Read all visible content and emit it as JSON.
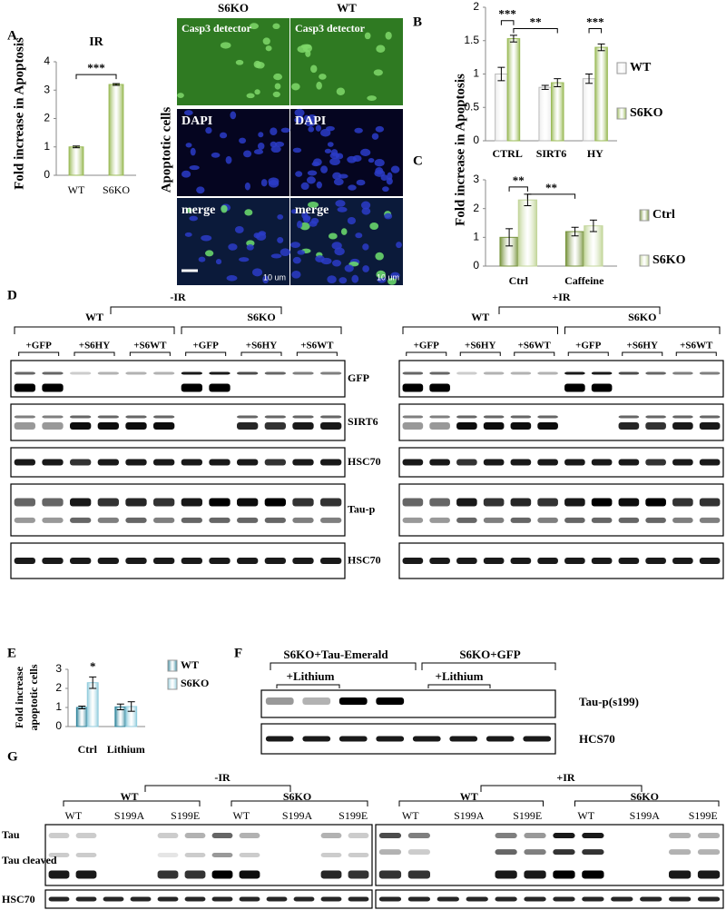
{
  "panel_labels": [
    "A",
    "B",
    "C",
    "D",
    "E",
    "F",
    "G"
  ],
  "chart_data": [
    {
      "type": "bar",
      "title": "IR",
      "y_label": "Fold increase in Apoptosis",
      "categories": [
        "WT",
        "S6KO"
      ],
      "values": [
        1,
        3.2
      ],
      "errors": [
        0.03,
        0.03
      ],
      "color": "#9bbb59",
      "ylim": [
        0,
        4
      ],
      "yticks": [
        0,
        1,
        2,
        3,
        4
      ],
      "annotations": [
        "***"
      ]
    },
    {
      "type": "grouped-bar",
      "y_label": "Fold increase  in Apoptosis",
      "categories": [
        "CTRL",
        "SIRT6",
        "HY"
      ],
      "ylim": [
        0,
        2
      ],
      "yticks": [
        0,
        0.5,
        1,
        1.5,
        2
      ],
      "series": [
        {
          "name": "WT",
          "color": "#ececec",
          "values": [
            1,
            0.8,
            0.93
          ],
          "errors": [
            0.1,
            0.03,
            0.07
          ]
        },
        {
          "name": "S6KO",
          "color": "#9bbb59",
          "values": [
            1.53,
            0.87,
            1.4
          ],
          "errors": [
            0.05,
            0.06,
            0.05
          ]
        }
      ],
      "annotations": [
        "***",
        "**",
        "***"
      ]
    },
    {
      "type": "grouped-bar",
      "categories": [
        "Ctrl",
        "Caffeine"
      ],
      "ylim": [
        0,
        3
      ],
      "yticks": [
        0,
        1,
        2,
        3
      ],
      "series": [
        {
          "name": "Ctrl",
          "color": "#77933c",
          "values": [
            1,
            1.2
          ],
          "errors": [
            0.3,
            0.15
          ]
        },
        {
          "name": "S6KO",
          "color": "#c3d69b",
          "values": [
            2.3,
            1.4
          ],
          "errors": [
            0.2,
            0.2
          ]
        }
      ],
      "annotations": [
        "**",
        "**"
      ]
    },
    {
      "type": "grouped-bar",
      "y_label": [
        "Fold increase",
        "apoptotic cells"
      ],
      "categories": [
        "Ctrl",
        "Lithium"
      ],
      "ylim": [
        0,
        3
      ],
      "yticks": [
        0,
        1,
        2,
        3
      ],
      "series": [
        {
          "name": "WT",
          "color": "#31859c",
          "values": [
            1,
            1.03
          ],
          "errors": [
            0.07,
            0.15
          ]
        },
        {
          "name": "S6KO",
          "color": "#93cddd",
          "values": [
            2.3,
            1.05
          ],
          "errors": [
            0.3,
            0.25
          ]
        }
      ],
      "annotations": [
        "*"
      ]
    }
  ],
  "micrograph": {
    "side_label": "Apoptotic cells",
    "columns": [
      "S6KO",
      "WT"
    ],
    "rows": [
      "Casp3 detector",
      "DAPI",
      "merge"
    ],
    "scale": "10 um"
  },
  "blot_d": {
    "conditions": [
      "-IR",
      "+IR"
    ],
    "genotypes": [
      "WT",
      "S6KO"
    ],
    "treatments": [
      "+GFP",
      "+S6HY",
      "+S6WT"
    ],
    "rows": [
      "GFP",
      "SIRT6",
      "HSC70",
      "Tau-p",
      "HSC70"
    ]
  },
  "blot_f": {
    "groups": [
      "S6KO+Tau-Emerald",
      "S6KO+GFP"
    ],
    "treatment": "+Lithium",
    "rows": [
      "Tau-p(s199)",
      "HCS70"
    ]
  },
  "blot_g": {
    "conditions": [
      "-IR",
      "+IR"
    ],
    "genotypes": [
      "WT",
      "S6KO"
    ],
    "lanes": [
      "WT",
      "S199A",
      "S199E"
    ],
    "rows": [
      "Tau",
      "Tau cleaved",
      "HSC70"
    ]
  }
}
